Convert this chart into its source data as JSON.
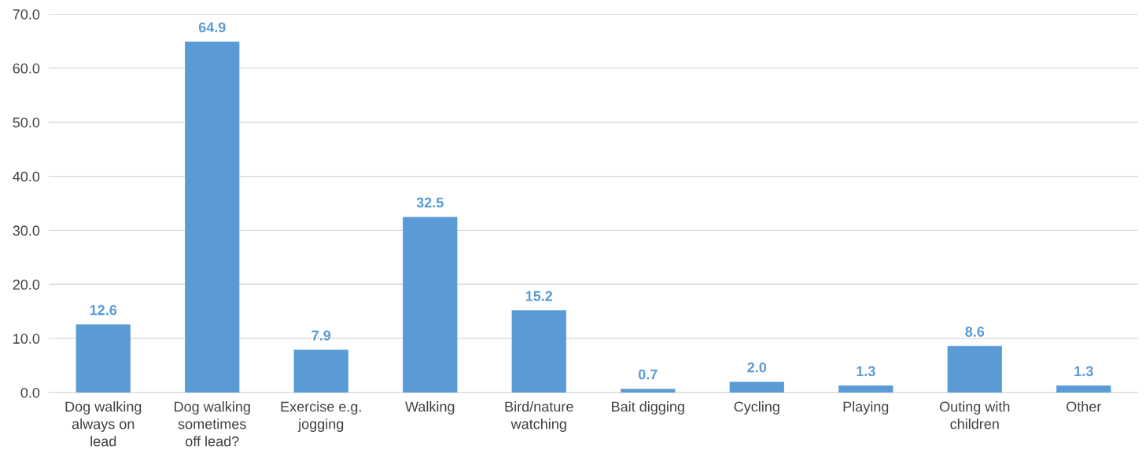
{
  "chart_data": {
    "type": "bar",
    "categories": [
      "Dog walking always on lead",
      "Dog walking sometimes off lead?",
      "Exercise e.g. jogging",
      "Walking",
      "Bird/nature watching",
      "Bait digging",
      "Cycling",
      "Playing",
      "Outing with children",
      "Other"
    ],
    "values": [
      12.6,
      64.9,
      7.9,
      32.5,
      15.2,
      0.7,
      2.0,
      1.3,
      8.6,
      1.3
    ],
    "value_labels": [
      "12.6",
      "64.9",
      "7.9",
      "32.5",
      "15.2",
      "0.7",
      "2.0",
      "1.3",
      "8.6",
      "1.3"
    ],
    "color": "#5b9bd5",
    "ylim": [
      0,
      70
    ],
    "yticks": [
      {
        "value": 0,
        "label": "0.0"
      },
      {
        "value": 10,
        "label": "10.0"
      },
      {
        "value": 20,
        "label": "20.0"
      },
      {
        "value": 30,
        "label": "30.0"
      },
      {
        "value": 40,
        "label": "40.0"
      },
      {
        "value": 50,
        "label": "50.0"
      },
      {
        "value": 60,
        "label": "60.0"
      },
      {
        "value": 70,
        "label": "70.0"
      }
    ],
    "grid": "y",
    "legend": false
  }
}
